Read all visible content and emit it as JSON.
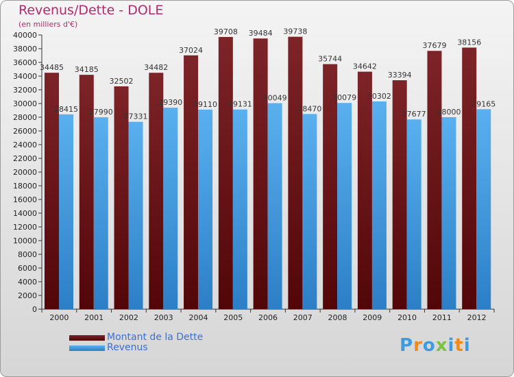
{
  "chart_data": {
    "type": "bar",
    "title": "Revenus/Dette - DOLE",
    "subtitle": "(en milliers d'€)",
    "categories": [
      "2000",
      "2001",
      "2002",
      "2003",
      "2004",
      "2005",
      "2006",
      "2007",
      "2008",
      "2009",
      "2010",
      "2011",
      "2012"
    ],
    "series": [
      {
        "name": "Montant de la Dette",
        "color": "#7a1f22",
        "values": [
          34485,
          34185,
          32502,
          34482,
          37024,
          39708,
          39484,
          39738,
          35744,
          34642,
          33394,
          37679,
          38156
        ]
      },
      {
        "name": "Revenus",
        "color": "#3f9be0",
        "values": [
          28415,
          27990,
          27331,
          29390,
          29110,
          29131,
          30049,
          28470,
          30079,
          30302,
          27677,
          28000,
          29165
        ]
      }
    ],
    "ylim": [
      0,
      40000
    ],
    "ytick_step": 2000,
    "grid": false,
    "legend_position": "bottom-left"
  },
  "logo": {
    "text": "Proxiti",
    "colors": [
      "#3f9be0",
      "#f28a1a",
      "#3f9be0",
      "#7cc242",
      "#3f9be0",
      "#f28a1a",
      "#3f9be0"
    ]
  }
}
